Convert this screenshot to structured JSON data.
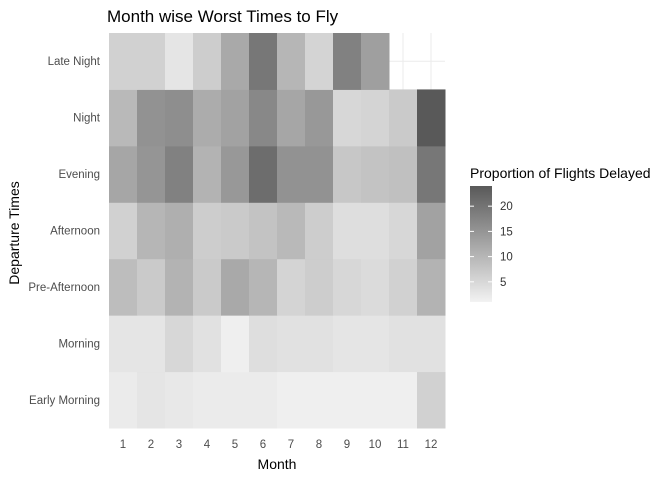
{
  "chart_data": {
    "type": "heatmap",
    "title": "Month wise Worst Times to Fly",
    "xlabel": "Month",
    "ylabel": "Departure Times",
    "x_categories": [
      "1",
      "2",
      "3",
      "4",
      "5",
      "6",
      "7",
      "8",
      "9",
      "10",
      "11",
      "12"
    ],
    "y_categories": [
      "Early Morning",
      "Morning",
      "Pre-Afternoon",
      "Afternoon",
      "Evening",
      "Night",
      "Late Night"
    ],
    "values": [
      [
        2.0,
        3.0,
        2.5,
        2.0,
        2.0,
        2.0,
        1.5,
        1.5,
        1.5,
        1.5,
        1.5,
        6.0
      ],
      [
        3.0,
        3.0,
        5.0,
        3.5,
        1.5,
        4.0,
        3.5,
        3.5,
        3.0,
        3.0,
        3.5,
        3.5
      ],
      [
        9.0,
        7.0,
        10.5,
        7.0,
        12.0,
        10.0,
        5.5,
        6.5,
        5.0,
        4.5,
        6.0,
        10.5
      ],
      [
        6.0,
        10.0,
        11.0,
        6.5,
        7.0,
        8.0,
        9.5,
        6.5,
        4.0,
        4.0,
        5.0,
        13.0
      ],
      [
        12.5,
        15.0,
        18.0,
        10.5,
        14.5,
        21.0,
        15.5,
        15.5,
        7.5,
        8.0,
        8.5,
        19.5
      ],
      [
        9.5,
        15.5,
        16.0,
        11.5,
        13.0,
        17.0,
        12.5,
        14.5,
        5.0,
        5.5,
        7.0,
        24.0
      ],
      [
        6.0,
        6.0,
        3.0,
        6.5,
        12.0,
        19.5,
        10.0,
        5.5,
        18.0,
        13.5,
        null,
        null
      ]
    ],
    "legend": {
      "title": "Proportion of Flights Delayed",
      "ticks": [
        5,
        10,
        15,
        20
      ],
      "range": [
        1,
        24
      ],
      "position": "right"
    },
    "color_scale": {
      "low": "#f2f2f2",
      "high": "#595959"
    },
    "grid": true
  }
}
